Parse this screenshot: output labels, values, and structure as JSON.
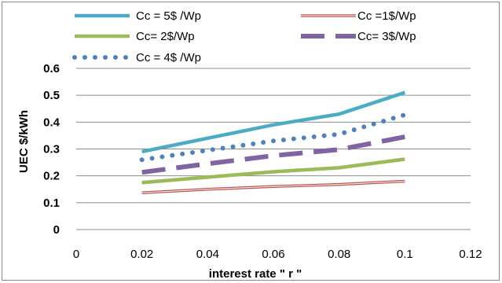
{
  "chart_data": {
    "type": "line",
    "title": "",
    "xlabel": "interest rate \" r \"",
    "ylabel": "UEC $/kWh",
    "xlim": [
      0,
      0.12
    ],
    "ylim": [
      0,
      0.6
    ],
    "x_ticks": [
      "0",
      "0.02",
      "0.04",
      "0.06",
      "0.08",
      "0.1",
      "0.12"
    ],
    "y_ticks": [
      "0",
      "0.1",
      "0.2",
      "0.3",
      "0.4",
      "0.5",
      "0.6"
    ],
    "grid": "horizontal",
    "legend_position": "top",
    "series": [
      {
        "name": "Cc = 5$ /Wp",
        "color": "#4bacc6",
        "style": "solid",
        "x": [
          0.02,
          0.04,
          0.06,
          0.08,
          0.1
        ],
        "y": [
          0.29,
          0.34,
          0.39,
          0.43,
          0.51
        ]
      },
      {
        "name": "Cc =1$/Wp",
        "color": "#c0504d",
        "style": "double",
        "x": [
          0.02,
          0.04,
          0.06,
          0.08,
          0.1
        ],
        "y": [
          0.137,
          0.15,
          0.16,
          0.168,
          0.18
        ]
      },
      {
        "name": "Cc= 2$/Wp",
        "color": "#9bbb59",
        "style": "solid",
        "x": [
          0.02,
          0.04,
          0.06,
          0.08,
          0.1
        ],
        "y": [
          0.175,
          0.195,
          0.215,
          0.23,
          0.262
        ]
      },
      {
        "name": "Cc= 3$/Wp",
        "color": "#8064a2",
        "style": "dash",
        "x": [
          0.02,
          0.04,
          0.06,
          0.08,
          0.1
        ],
        "y": [
          0.213,
          0.245,
          0.275,
          0.298,
          0.345
        ]
      },
      {
        "name": "Cc = 4$ /Wp",
        "color": "#4f81bd",
        "style": "dot",
        "x": [
          0.02,
          0.04,
          0.06,
          0.08,
          0.1
        ],
        "y": [
          0.26,
          0.295,
          0.33,
          0.355,
          0.427
        ]
      }
    ]
  }
}
